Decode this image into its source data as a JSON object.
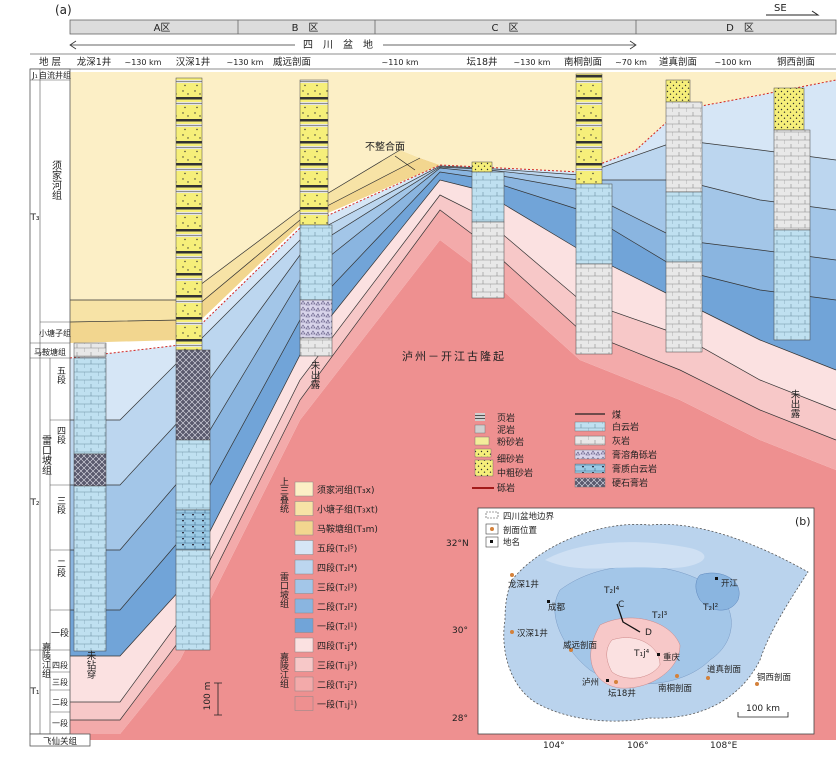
{
  "panel_labels": {
    "a": "(a)",
    "b": "(b)"
  },
  "direction": "SE",
  "zones": [
    "A区",
    "B　区",
    "C　区",
    "D　区"
  ],
  "basin_label": "四　川　盆　地",
  "strat_header": "地 层",
  "sections": [
    {
      "name": "龙深1井",
      "gap_after": "~130 km"
    },
    {
      "name": "汉深1井",
      "gap_after": "~130 km"
    },
    {
      "name": "威远剖面",
      "gap_after": "~110 km"
    },
    {
      "name": "坛18井",
      "gap_after": "~130 km"
    },
    {
      "name": "南桐剖面",
      "gap_after": "~70 km"
    },
    {
      "name": "道真剖面",
      "gap_after": "~100 km"
    },
    {
      "name": "铜西剖面",
      "gap_after": ""
    }
  ],
  "strat": {
    "j1": "J₁",
    "zhiliujing": "自流井组",
    "t3": "T₃",
    "xujiahe": "须家河组",
    "xiaotangzi": "小塘子组",
    "maantang": "马鞍塘组",
    "t2": "T₂",
    "leikoupo": "雷口坡组",
    "wuduan": "五段",
    "siduan": "四段",
    "sanduan": "三段",
    "erduan": "二段",
    "yiduan": "一段",
    "t1": "T₁",
    "jialingjiang": "嘉陵江组",
    "j_si": "四段",
    "j_san": "三段",
    "j_er": "二段",
    "j_yi": "一段",
    "feixianguan": "飞仙关组"
  },
  "annotations": {
    "unconformity": "不整合面",
    "uplift": "泸州－开江古隆起",
    "not_exposed": "未出露",
    "not_drilled": "未钻穿",
    "scale": "100 m"
  },
  "lithology_legend": [
    {
      "label": "页岩"
    },
    {
      "label": "泥岩"
    },
    {
      "label": "粉砂岩"
    },
    {
      "label": "细砂岩"
    },
    {
      "label": "中粗砂岩"
    },
    {
      "label": "砾岩"
    },
    {
      "label": "煤"
    },
    {
      "label": "白云岩"
    },
    {
      "label": "灰岩"
    },
    {
      "label": "膏溶角砾岩"
    },
    {
      "label": "膏质白云岩"
    },
    {
      "label": "硬石膏岩"
    }
  ],
  "unit_legend": {
    "group_upper": "上三叠统",
    "group_leikoupo": "雷口坡组",
    "group_jialingjiang": "嘉陵江组",
    "items": [
      {
        "label": "须家河组(T₃x)",
        "color": "#fcefc6"
      },
      {
        "label": "小塘子组(T₃xt)",
        "color": "#f7e3a6"
      },
      {
        "label": "马鞍塘组(T₃m)",
        "color": "#f2d68f"
      },
      {
        "label": "五段(T₂l⁵)",
        "color": "#d6e6f6"
      },
      {
        "label": "四段(T₂l⁴)",
        "color": "#bcd6ef"
      },
      {
        "label": "三段(T₂l³)",
        "color": "#a3c6e8"
      },
      {
        "label": "二段(T₂l²)",
        "color": "#8ab5e0"
      },
      {
        "label": "一段(T₂l¹)",
        "color": "#71a4d8"
      },
      {
        "label": "四段(T₁j⁴)",
        "color": "#fbe1e1"
      },
      {
        "label": "三段(T₁j³)",
        "color": "#f7c8c8"
      },
      {
        "label": "二段(T₁j²)",
        "color": "#f3aaaa"
      },
      {
        "label": "一段(T₁j¹)",
        "color": "#ee9090"
      }
    ]
  },
  "map": {
    "legend": [
      "四川盆地边界",
      "剖面位置",
      "地名"
    ],
    "lat_labels": [
      "32°N",
      "30°",
      "28°"
    ],
    "lon_labels": [
      "104°",
      "106°",
      "108°E"
    ],
    "places": [
      "龙深1井",
      "成都",
      "汉深1井",
      "威远剖面",
      "泸州",
      "坛18井",
      "南桐剖面",
      "重庆",
      "道真剖面",
      "铜西剖面",
      "开江"
    ],
    "unit_labels": [
      "T₂l⁴",
      "T₂l³",
      "T₂l²",
      "T₁j⁴",
      "T₂l²"
    ],
    "line_labels": [
      "C",
      "D"
    ],
    "scale": "100 km"
  },
  "colors": {
    "xujiahe": "#fcefc6",
    "xiaotangzi": "#f7e3a6",
    "unconformity": "#d2231f",
    "conglomerate": "#a31a1a"
  }
}
